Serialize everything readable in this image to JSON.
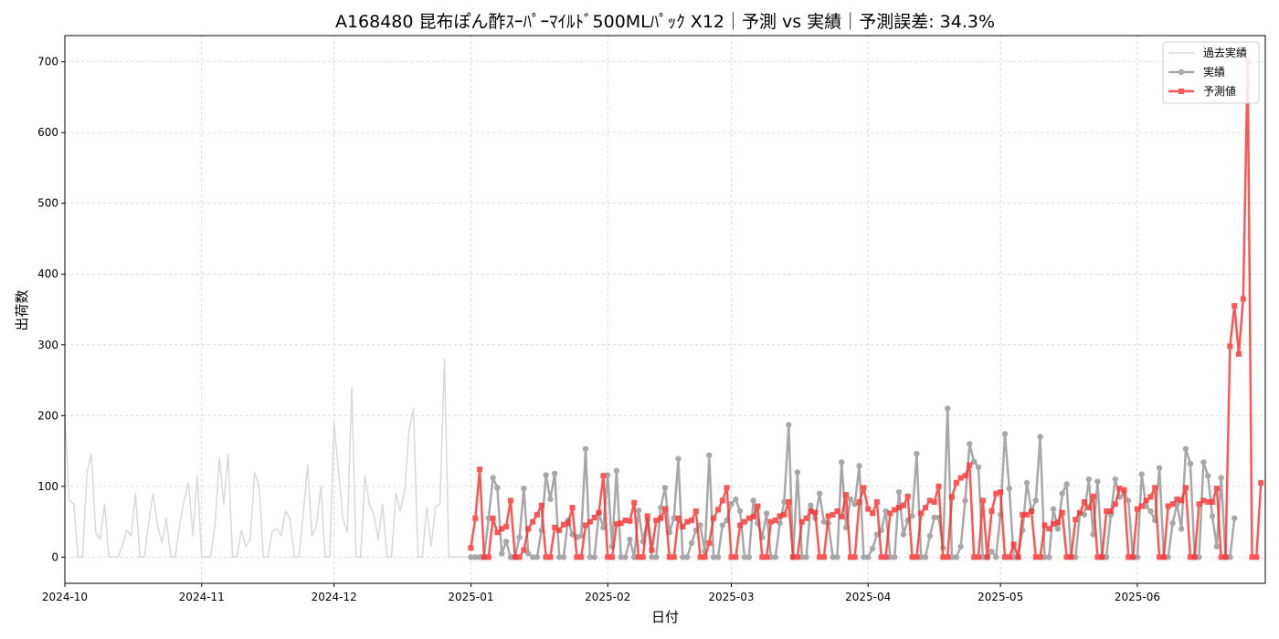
{
  "chart_data": {
    "type": "line",
    "title": "A168480 昆布ぽん酢ｽｰﾊﾟｰﾏｲﾙﾄﾞ500MLﾊﾟｯｸ X12｜予測 vs 実績｜予測誤差: 34.3%",
    "xlabel": "日付",
    "ylabel": "出荷数",
    "xlim": [
      "2024-10-01",
      "2025-06-30"
    ],
    "ylim": [
      -37,
      737
    ],
    "yticks": [
      0,
      100,
      200,
      300,
      400,
      500,
      600,
      700
    ],
    "xticks": [
      "2024-10",
      "2024-11",
      "2024-12",
      "2025-01",
      "2025-02",
      "2025-03",
      "2025-04",
      "2025-05",
      "2025-06"
    ],
    "grid": true,
    "legend_position": "top-right",
    "colors": {
      "history": "#d9d9d9",
      "actual": "#8c8c8c",
      "forecast": "#ff2b2b"
    },
    "series": [
      {
        "name": "過去実績",
        "start": "2024-10-01",
        "values": [
          200,
          80,
          75,
          0,
          0,
          120,
          145,
          35,
          25,
          75,
          0,
          0,
          0,
          15,
          38,
          30,
          90,
          0,
          0,
          50,
          90,
          45,
          20,
          55,
          0,
          0,
          45,
          80,
          105,
          30,
          115,
          0,
          0,
          0,
          45,
          140,
          75,
          145,
          0,
          0,
          38,
          15,
          25,
          120,
          100,
          0,
          0,
          37,
          40,
          30,
          65,
          55,
          0,
          0,
          60,
          130,
          30,
          45,
          100,
          0,
          0,
          190,
          120,
          55,
          35,
          240,
          0,
          0,
          115,
          75,
          60,
          25,
          75,
          0,
          0,
          90,
          65,
          95,
          180,
          210,
          0,
          0,
          70,
          15,
          72,
          75,
          280,
          0,
          0,
          0,
          0,
          0
        ]
      },
      {
        "name": "実績",
        "start": "2025-01-01",
        "values": [
          0,
          0,
          0,
          0,
          55,
          112,
          98,
          5,
          22,
          0,
          0,
          28,
          97,
          5,
          0,
          0,
          38,
          116,
          82,
          118,
          0,
          0,
          52,
          32,
          28,
          30,
          153,
          0,
          0,
          62,
          42,
          116,
          15,
          122,
          0,
          0,
          25,
          0,
          66,
          22,
          52,
          0,
          0,
          70,
          98,
          35,
          55,
          139,
          0,
          0,
          20,
          38,
          45,
          8,
          144,
          0,
          0,
          45,
          52,
          75,
          82,
          65,
          0,
          0,
          80,
          48,
          28,
          62,
          0,
          0,
          48,
          78,
          187,
          0,
          120,
          0,
          0,
          73,
          55,
          90,
          50,
          48,
          0,
          0,
          134,
          42,
          82,
          75,
          129,
          0,
          0,
          12,
          32,
          38,
          65,
          0,
          0,
          92,
          32,
          52,
          58,
          146,
          0,
          0,
          30,
          56,
          56,
          13,
          210,
          0,
          0,
          15,
          80,
          160,
          135,
          127,
          0,
          0,
          8,
          0,
          60,
          174,
          97,
          0,
          0,
          38,
          105,
          65,
          80,
          170,
          0,
          0,
          68,
          40,
          90,
          103,
          0,
          0,
          62,
          60,
          110,
          32,
          107,
          0,
          0,
          60,
          110,
          85,
          90,
          80,
          0,
          0,
          117,
          72,
          65,
          52,
          126,
          0,
          0,
          48,
          75,
          40,
          153,
          132,
          0,
          0,
          134,
          115,
          58,
          15,
          112,
          0,
          0,
          55
        ]
      },
      {
        "name": "予測値",
        "start": "2025-01-01",
        "values": [
          13,
          55,
          124,
          0,
          0,
          55,
          35,
          40,
          43,
          80,
          0,
          0,
          10,
          40,
          50,
          60,
          73,
          0,
          0,
          42,
          38,
          46,
          48,
          70,
          0,
          0,
          45,
          50,
          56,
          63,
          115,
          0,
          0,
          47,
          48,
          52,
          51,
          77,
          0,
          0,
          58,
          10,
          52,
          55,
          68,
          0,
          0,
          55,
          43,
          50,
          52,
          65,
          0,
          0,
          20,
          55,
          67,
          80,
          98,
          0,
          0,
          45,
          50,
          55,
          57,
          72,
          0,
          0,
          50,
          52,
          58,
          60,
          78,
          0,
          0,
          50,
          55,
          65,
          63,
          0,
          0,
          58,
          60,
          65,
          57,
          88,
          0,
          0,
          78,
          98,
          68,
          62,
          78,
          0,
          0,
          62,
          67,
          70,
          73,
          86,
          0,
          0,
          62,
          70,
          80,
          78,
          100,
          0,
          0,
          85,
          105,
          112,
          115,
          130,
          0,
          0,
          80,
          0,
          65,
          90,
          92,
          0,
          0,
          18,
          0,
          60,
          60,
          65,
          0,
          0,
          45,
          40,
          47,
          49,
          63,
          0,
          0,
          53,
          63,
          78,
          70,
          86,
          0,
          0,
          65,
          65,
          75,
          97,
          95,
          0,
          0,
          68,
          72,
          80,
          85,
          98,
          0,
          0,
          72,
          75,
          82,
          80,
          98,
          0,
          0,
          75,
          80,
          78,
          78,
          97,
          0,
          0,
          298,
          355,
          287,
          365,
          700,
          0,
          0,
          105
        ]
      }
    ]
  }
}
